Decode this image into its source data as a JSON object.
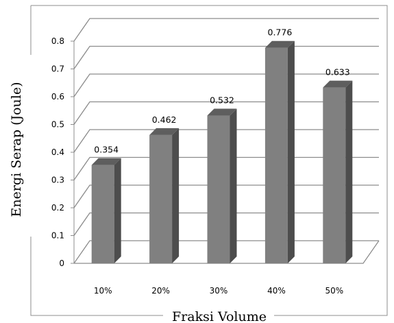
{
  "chart_data": {
    "type": "bar",
    "categories": [
      "10%",
      "20%",
      "30%",
      "40%",
      "50%"
    ],
    "values": [
      0.354,
      0.462,
      0.532,
      0.776,
      0.633
    ],
    "data_labels": [
      "0.354",
      "0.462",
      "0.532",
      "0.776",
      "0.633"
    ],
    "xlabel": "Fraksi Volume",
    "ylabel": "Energi Serap (Joule)",
    "ylim": [
      0,
      0.8
    ],
    "yticks": [
      "0",
      "0.1",
      "0.2",
      "0.3",
      "0.4",
      "0.5",
      "0.6",
      "0.7",
      "0.8"
    ],
    "grid": true,
    "style": "3d-column",
    "colors": {
      "bar_front": "#808080",
      "bar_side": "#4d4d4d",
      "bar_top": "#5e5e5e",
      "grid": "#8c8c8c",
      "frame": "#8c8c8c"
    }
  }
}
